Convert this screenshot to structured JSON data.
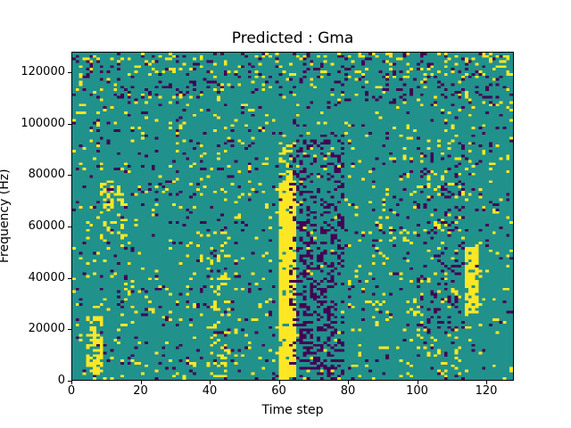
{
  "chart_data": {
    "type": "heatmap",
    "title": "Predicted : Gma",
    "xlabel": "Time step",
    "ylabel": "Frequency (Hz)",
    "x_range": [
      0,
      128
    ],
    "y_range": [
      0,
      128000
    ],
    "x_tick_values": [
      0,
      20,
      40,
      60,
      80,
      100,
      120
    ],
    "x_tick_labels": [
      "0",
      "20",
      "40",
      "60",
      "80",
      "100",
      "120"
    ],
    "y_tick_values": [
      0,
      20000,
      40000,
      60000,
      80000,
      100000,
      120000
    ],
    "y_tick_labels": [
      "0",
      "20000",
      "40000",
      "60000",
      "80000",
      "100000",
      "120000"
    ],
    "grid_size": [
      128,
      128
    ],
    "colormap": "viridis",
    "value_colors": {
      "mid": "#21918c",
      "high": "#fde725",
      "low": "#440154"
    },
    "base_density": {
      "high": 0.045,
      "low": 0.04
    },
    "seed": 1337,
    "features": [
      {
        "name": "solid-yellow-bar",
        "color": "high",
        "x": [
          60,
          65
        ],
        "y": [
          0,
          78000
        ],
        "density": 0.93
      },
      {
        "name": "yellow-bar-upper-tail",
        "color": "high",
        "x": [
          60,
          64
        ],
        "y": [
          78000,
          92000
        ],
        "density": 0.4
      },
      {
        "name": "purple-cluster-after-bar",
        "color": "low",
        "x": [
          63,
          79
        ],
        "y": [
          0,
          96000
        ],
        "density": 0.22
      },
      {
        "name": "purple-cluster-core",
        "color": "low",
        "x": [
          66,
          76
        ],
        "y": [
          0,
          60000
        ],
        "density": 0.18
      },
      {
        "name": "yellow-streak-right",
        "color": "high",
        "x": [
          114,
          118
        ],
        "y": [
          26000,
          52000
        ],
        "density": 0.85
      },
      {
        "name": "yellow-left-lowfreq",
        "color": "high",
        "x": [
          4,
          9
        ],
        "y": [
          3000,
          25000
        ],
        "density": 0.55
      },
      {
        "name": "left-mid-yellow",
        "color": "high",
        "x": [
          8,
          15
        ],
        "y": [
          55000,
          78000
        ],
        "density": 0.2
      },
      {
        "name": "mid-yellow-column",
        "color": "high",
        "x": [
          40,
          46
        ],
        "y": [
          0,
          60000
        ],
        "density": 0.16
      },
      {
        "name": "top-band-yellow",
        "color": "high",
        "x": [
          0,
          128
        ],
        "y": [
          118000,
          128000
        ],
        "density": 0.07
      },
      {
        "name": "top-band-purple",
        "color": "low",
        "x": [
          0,
          128
        ],
        "y": [
          110000,
          128000
        ],
        "density": 0.07
      },
      {
        "name": "right-purple-region",
        "color": "low",
        "x": [
          100,
          114
        ],
        "y": [
          20000,
          92000
        ],
        "density": 0.1
      },
      {
        "name": "right-yellow-sparse",
        "color": "high",
        "x": [
          95,
          113
        ],
        "y": [
          0,
          100000
        ],
        "density": 0.04
      }
    ]
  }
}
